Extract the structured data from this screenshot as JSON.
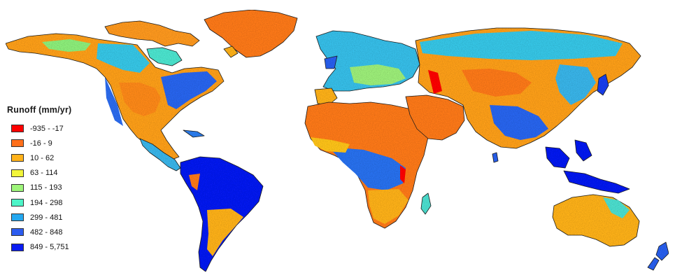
{
  "legend": {
    "title": "Runoff (mm/yr)",
    "items": [
      {
        "label": "-935 - -17",
        "color": "#ff0000"
      },
      {
        "label": "-16 - 9",
        "color": "#ff6f1a"
      },
      {
        "label": "10 - 62",
        "color": "#ffb21a"
      },
      {
        "label": "63 - 114",
        "color": "#f2f53a"
      },
      {
        "label": "115 - 193",
        "color": "#9ef57a"
      },
      {
        "label": "194 - 298",
        "color": "#4df5c8"
      },
      {
        "label": "299 - 481",
        "color": "#24a8f0"
      },
      {
        "label": "482 - 848",
        "color": "#2c5cf0"
      },
      {
        "label": "849 - 5,751",
        "color": "#0a1cf2"
      }
    ]
  }
}
